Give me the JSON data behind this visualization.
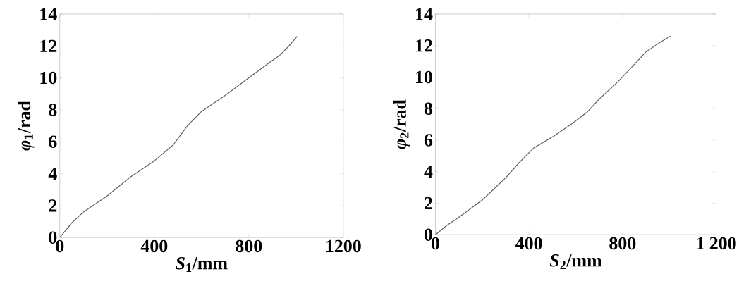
{
  "chart_data": [
    {
      "type": "line",
      "xlabel": "*S*$_{1}$/mm",
      "ylabel": "*φ*$_{1}$/rad",
      "xlim": [
        0,
        1200
      ],
      "ylim": [
        0,
        14
      ],
      "xticks": [
        0,
        400,
        800,
        1200
      ],
      "yticks": [
        0,
        2,
        4,
        6,
        8,
        10,
        12,
        14
      ],
      "grid": false,
      "marker": "none",
      "line_style": "solid",
      "series": [
        {
          "color": "#606060",
          "x": [
            0,
            50,
            100,
            200,
            300,
            400,
            480,
            540,
            600,
            700,
            800,
            900,
            930,
            970,
            1005
          ],
          "values": [
            0,
            0.9,
            1.6,
            2.6,
            3.8,
            4.8,
            5.8,
            7.0,
            7.9,
            8.9,
            10.0,
            11.1,
            11.4,
            12.0,
            12.6
          ]
        }
      ]
    },
    {
      "type": "line",
      "xlabel": "*S*$_{2}$/mm",
      "ylabel": "*φ*$_{2}$/rad",
      "xlim": [
        0,
        1200
      ],
      "ylim": [
        0,
        14
      ],
      "xticks": [
        0,
        400,
        800,
        {
          "value": 1200,
          "label": "1 200"
        }
      ],
      "yticks": [
        0,
        2,
        4,
        6,
        8,
        10,
        12,
        14
      ],
      "grid": false,
      "marker": "none",
      "line_style": "solid",
      "series": [
        {
          "color": "#606060",
          "x": [
            0,
            50,
            100,
            200,
            300,
            360,
            420,
            500,
            580,
            650,
            700,
            780,
            850,
            900,
            960,
            1005
          ],
          "values": [
            0,
            0.6,
            1.1,
            2.2,
            3.6,
            4.6,
            5.5,
            6.2,
            7.0,
            7.8,
            8.6,
            9.7,
            10.8,
            11.6,
            12.2,
            12.6
          ]
        }
      ]
    }
  ]
}
